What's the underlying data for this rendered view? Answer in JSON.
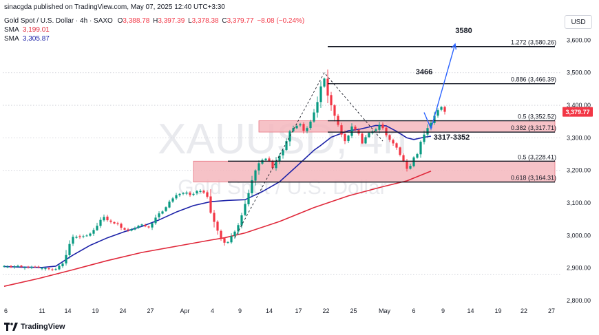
{
  "header": {
    "publisher": "sinacgda published on TradingView.com, May 07, 2025 12:40 UTC+3:30",
    "symbol_line": "Gold Spot / U.S. Dollar · 4h · SAXO",
    "o_label": "O",
    "o_value": "3,388.78",
    "h_label": "H",
    "h_value": "3,397.39",
    "l_label": "L",
    "l_value": "3,378.38",
    "c_label": "C",
    "c_value": "3,379.77",
    "change": "−8.08 (−0.24%)",
    "sma1_label": "SMA",
    "sma1_value": "3,199.01",
    "sma2_label": "SMA",
    "sma2_value": "3,305.87"
  },
  "currency_button": "USD",
  "footer": {
    "brand": "TradingView",
    "logo_icon": "tradingview-logo-icon"
  },
  "watermark": {
    "ticker": "XAUUSD, 4h",
    "name": "Gold Spot / U.S. Dollar"
  },
  "chart_data": {
    "type": "candlestick",
    "timeframe": "4h",
    "ylim": [
      2760,
      3660
    ],
    "y_ticks": [
      2800,
      2900,
      3000,
      3100,
      3200,
      3300,
      3400,
      3500,
      3600
    ],
    "y_tick_labels": [
      "2,800.00",
      "2,900.00",
      "3,000.00",
      "3,100.00",
      "3,200.00",
      "3,300.00",
      "3,400.00",
      "3,500.00",
      "3,600.00"
    ],
    "x_tick_labels": [
      "6",
      "11",
      "14",
      "19",
      "24",
      "27",
      "Apr",
      "4",
      "9",
      "14",
      "17",
      "22",
      "25",
      "May",
      "6",
      "9",
      "14",
      "19",
      "22",
      "27"
    ],
    "x_tick_index": [
      0.5,
      11,
      18.5,
      26.5,
      34.5,
      42.5,
      52.5,
      60.5,
      68.5,
      77,
      85.5,
      93.5,
      101.5,
      110.5,
      119,
      127.5,
      135.5,
      143.5,
      151,
      159
    ],
    "current_price": 3379.77,
    "current_price_label": "3,379.77",
    "closes": [
      2906,
      2905,
      2903,
      2905,
      2907,
      2904,
      2903,
      2902,
      2904,
      2903,
      2902,
      2901,
      2900,
      2897,
      2894,
      2897,
      2907,
      2914,
      2940,
      2974,
      2996,
      2996,
      2995,
      2998,
      3000,
      3006,
      3017,
      3030,
      3048,
      3057,
      3047,
      3042,
      3037,
      3035,
      3024,
      3018,
      3016,
      3019,
      3024,
      3030,
      3034,
      3028,
      3025,
      3038,
      3055,
      3068,
      3074,
      3087,
      3104,
      3114,
      3124,
      3128,
      3130,
      3132,
      3124,
      3128,
      3136,
      3137,
      3132,
      3119,
      3070,
      3042,
      3015,
      2992,
      2978,
      2980,
      2998,
      3012,
      3032,
      3062,
      3097,
      3130,
      3170,
      3200,
      3222,
      3232,
      3236,
      3228,
      3208,
      3230,
      3245,
      3262,
      3290,
      3320,
      3330,
      3337,
      3342,
      3322,
      3330,
      3350,
      3378,
      3410,
      3458,
      3482,
      3430,
      3400,
      3368,
      3340,
      3310,
      3290,
      3307,
      3335,
      3325,
      3313,
      3283,
      3302,
      3315,
      3320,
      3326,
      3340,
      3330,
      3308,
      3294,
      3283,
      3270,
      3248,
      3228,
      3205,
      3214,
      3240,
      3250,
      3288,
      3310,
      3330,
      3346,
      3368,
      3385,
      3395,
      3380
    ],
    "sma_fast": {
      "name": "SMA",
      "color": "#1c22a8",
      "points": [
        [
          0,
          2905
        ],
        [
          5,
          2903
        ],
        [
          11,
          2902
        ],
        [
          15,
          2906
        ],
        [
          20,
          2940
        ],
        [
          25,
          2970
        ],
        [
          30,
          2993
        ],
        [
          35,
          3012
        ],
        [
          40,
          3028
        ],
        [
          45,
          3048
        ],
        [
          50,
          3072
        ],
        [
          55,
          3092
        ],
        [
          60,
          3104
        ],
        [
          65,
          3108
        ],
        [
          70,
          3110
        ],
        [
          75,
          3135
        ],
        [
          80,
          3165
        ],
        [
          85,
          3213
        ],
        [
          90,
          3262
        ],
        [
          92,
          3277
        ],
        [
          95,
          3302
        ],
        [
          100,
          3322
        ],
        [
          103,
          3326
        ],
        [
          108,
          3338
        ],
        [
          111,
          3337
        ],
        [
          114,
          3320
        ],
        [
          117,
          3300
        ],
        [
          119,
          3295
        ],
        [
          122,
          3302
        ],
        [
          124,
          3305
        ]
      ]
    },
    "sma_slow": {
      "name": "SMA",
      "color": "#e0283a",
      "points": [
        [
          0,
          2844
        ],
        [
          10,
          2868
        ],
        [
          20,
          2895
        ],
        [
          30,
          2923
        ],
        [
          40,
          2948
        ],
        [
          50,
          2967
        ],
        [
          60,
          2986
        ],
        [
          64,
          2993
        ],
        [
          70,
          3008
        ],
        [
          80,
          3043
        ],
        [
          90,
          3086
        ],
        [
          100,
          3122
        ],
        [
          110,
          3150
        ],
        [
          117,
          3168
        ],
        [
          124,
          3198
        ]
      ]
    },
    "fibonacci_levels": [
      {
        "label": "1.272 (3,580.26)",
        "price": 3580.26,
        "index_start": 94,
        "index_end": 160
      },
      {
        "label": "0.886 (3,466.39)",
        "price": 3466.39,
        "index_start": 94,
        "index_end": 160
      },
      {
        "label": "0.5 (3,352.52)",
        "price": 3352.52,
        "index_start": 94,
        "index_end": 160
      },
      {
        "label": "0.382 (3,317.71)",
        "price": 3317.71,
        "index_start": 94,
        "index_end": 160
      },
      {
        "label": "0.5 (3,228.41)",
        "price": 3228.41,
        "index_start": 65,
        "index_end": 160
      },
      {
        "label": "0.618 (3,164.31)",
        "price": 3164.31,
        "index_start": 65,
        "index_end": 160
      }
    ],
    "zones": [
      {
        "top": 3352.52,
        "bottom": 3317.71,
        "index_start": 74,
        "index_end": 160
      },
      {
        "top": 3228.41,
        "bottom": 3164.31,
        "index_start": 55,
        "index_end": 160
      }
    ],
    "dashed_zigzag": [
      [
        67,
        2993
      ],
      [
        93,
        3500
      ],
      [
        110,
        3290
      ]
    ],
    "projection": [
      [
        122,
        3378
      ],
      [
        124,
        3328
      ],
      [
        131,
        3588
      ]
    ],
    "annotations": [
      {
        "text": "3580",
        "index": 133.5,
        "price": 3622
      },
      {
        "text": "3466",
        "index": 122,
        "price": 3495
      },
      {
        "text": "3317-3352",
        "index": 130,
        "price": 3294
      }
    ],
    "dotted_guides": [
      3500,
      3400,
      3300,
      3200,
      2880
    ]
  }
}
